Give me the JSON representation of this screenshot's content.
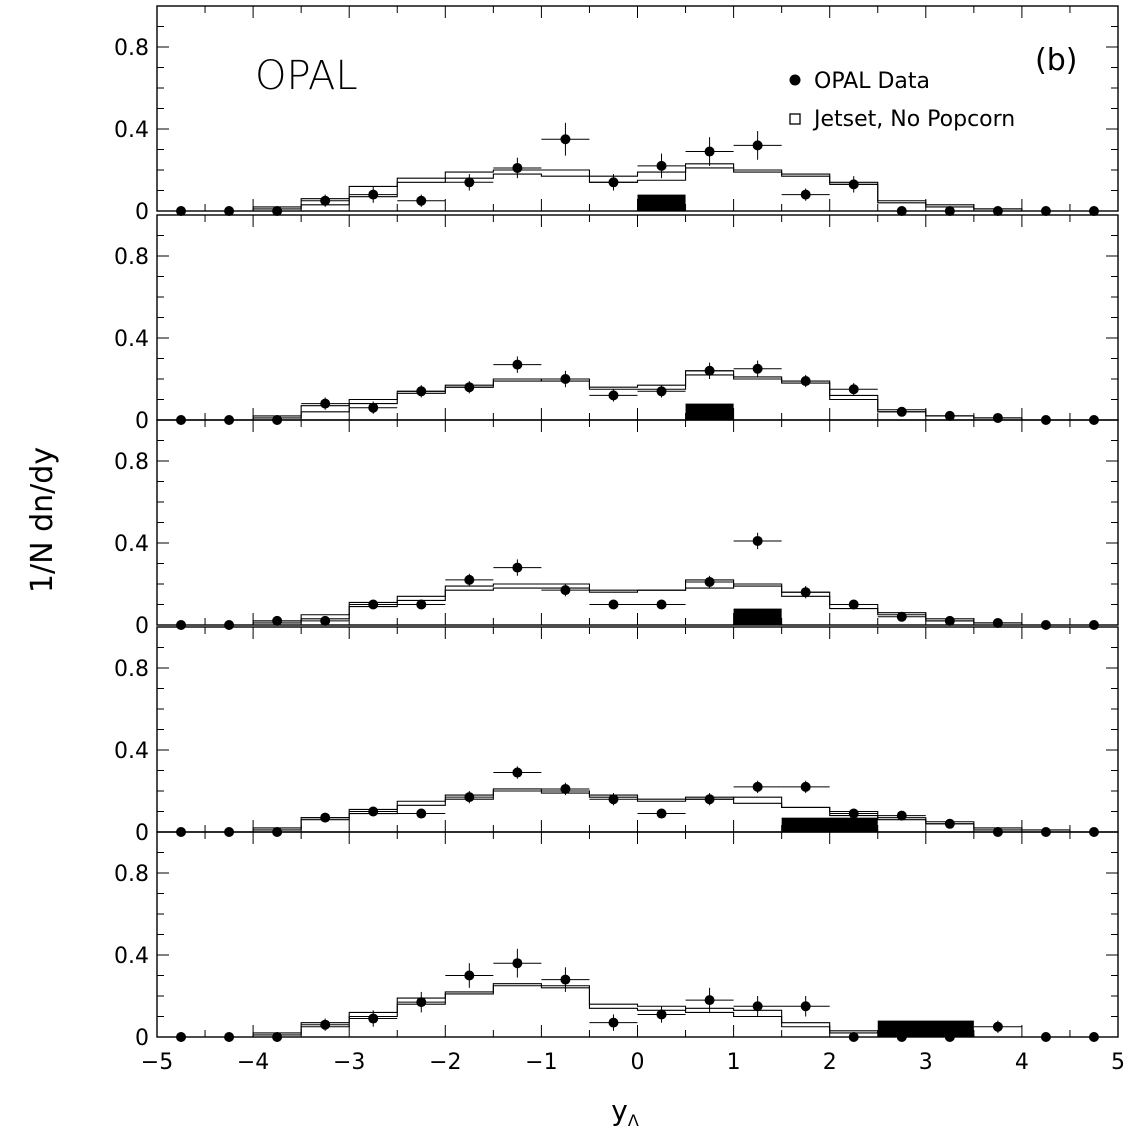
{
  "chart_data": {
    "type": "scatter",
    "experiment_label": "OPAL",
    "panel_tag": "(b)",
    "ylabel": "1/N dn/dy",
    "xlabel": "y",
    "xlabel_sub": "Λ",
    "xlim": [
      -5,
      5
    ],
    "ylim": [
      0,
      1.0
    ],
    "x_ticks": [
      -5,
      -4,
      -3,
      -2,
      -1,
      0,
      1,
      2,
      3,
      4,
      5
    ],
    "x_tick_labels": [
      "−5",
      "−4",
      "−3",
      "−2",
      "−1",
      "0",
      "1",
      "2",
      "3",
      "4",
      "5"
    ],
    "y_ticks": [
      0,
      0.4,
      0.8
    ],
    "y_tick_labels": [
      "0",
      "0.4",
      "0.8"
    ],
    "legend": {
      "position": "top-right",
      "entries": [
        {
          "marker": "filled-circle",
          "label": "OPAL Data"
        },
        {
          "marker": "open-square",
          "label": "Jetset, No Popcorn"
        }
      ]
    },
    "bin_edges": [
      -5,
      -4.5,
      -4,
      -3.5,
      -3,
      -2.5,
      -2,
      -1.5,
      -1,
      -0.5,
      0,
      0.5,
      1,
      1.5,
      2,
      2.5,
      3,
      3.5,
      4,
      4.5,
      5
    ],
    "x": [
      -4.75,
      -4.25,
      -3.75,
      -3.25,
      -2.75,
      -2.25,
      -1.75,
      -1.25,
      -0.75,
      -0.25,
      0.25,
      0.75,
      1.25,
      1.75,
      2.25,
      2.75,
      3.25,
      3.75,
      4.25,
      4.75
    ],
    "panels": [
      {
        "data": [
          0.0,
          0.0,
          0.0,
          0.05,
          0.08,
          0.05,
          0.14,
          0.21,
          0.35,
          0.14,
          0.22,
          0.29,
          0.32,
          0.08,
          0.13,
          0.0,
          0.0,
          0.0,
          0.0,
          0.0
        ],
        "errors": [
          0.0,
          0.0,
          0.0,
          0.03,
          0.04,
          0.03,
          0.04,
          0.05,
          0.08,
          0.04,
          0.06,
          0.07,
          0.07,
          0.03,
          0.04,
          0.0,
          0.0,
          0.0,
          0.0,
          0.0
        ],
        "model": [
          0.0,
          0.0,
          0.01,
          0.06,
          0.12,
          0.16,
          0.19,
          0.2,
          0.2,
          0.17,
          0.19,
          0.21,
          0.2,
          0.18,
          0.13,
          0.04,
          0.02,
          0.01,
          0.0,
          0.0
        ],
        "model_alt": [
          0.0,
          0.0,
          0.02,
          0.03,
          0.07,
          0.14,
          0.16,
          0.18,
          0.17,
          0.14,
          0.15,
          0.23,
          0.19,
          0.17,
          0.14,
          0.05,
          0.03,
          0.01,
          0.0,
          0.0
        ],
        "box": {
          "x0": 0.0,
          "x1": 0.5,
          "height": 0.08
        }
      },
      {
        "data": [
          0.0,
          0.0,
          0.0,
          0.08,
          0.06,
          0.14,
          0.16,
          0.27,
          0.2,
          0.12,
          0.14,
          0.24,
          0.25,
          0.19,
          0.15,
          0.04,
          0.02,
          0.01,
          0.0,
          0.0
        ],
        "errors": [
          0.0,
          0.0,
          0.0,
          0.03,
          0.03,
          0.03,
          0.03,
          0.04,
          0.04,
          0.03,
          0.03,
          0.04,
          0.04,
          0.03,
          0.03,
          0.01,
          0.01,
          0.0,
          0.0,
          0.0
        ],
        "model": [
          0.0,
          0.0,
          0.01,
          0.07,
          0.1,
          0.14,
          0.16,
          0.19,
          0.2,
          0.16,
          0.17,
          0.22,
          0.2,
          0.18,
          0.12,
          0.05,
          0.02,
          0.01,
          0.0,
          0.0
        ],
        "model_alt": [
          0.0,
          0.0,
          0.02,
          0.04,
          0.08,
          0.13,
          0.17,
          0.2,
          0.19,
          0.15,
          0.15,
          0.24,
          0.21,
          0.19,
          0.1,
          0.04,
          0.02,
          0.01,
          0.0,
          0.0
        ],
        "box": {
          "x0": 0.5,
          "x1": 1.0,
          "height": 0.08
        }
      },
      {
        "data": [
          0.0,
          0.0,
          0.02,
          0.02,
          0.1,
          0.1,
          0.22,
          0.28,
          0.17,
          0.1,
          0.1,
          0.21,
          0.41,
          0.16,
          0.1,
          0.04,
          0.02,
          0.01,
          0.0,
          0.0
        ],
        "errors": [
          0.0,
          0.0,
          0.01,
          0.01,
          0.02,
          0.02,
          0.03,
          0.04,
          0.03,
          0.02,
          0.02,
          0.03,
          0.04,
          0.03,
          0.02,
          0.01,
          0.01,
          0.0,
          0.0,
          0.0
        ],
        "model": [
          0.0,
          0.0,
          0.01,
          0.05,
          0.11,
          0.14,
          0.19,
          0.2,
          0.2,
          0.17,
          0.17,
          0.22,
          0.19,
          0.16,
          0.1,
          0.06,
          0.03,
          0.01,
          0.0,
          0.0
        ],
        "model_alt": [
          0.0,
          0.0,
          0.02,
          0.03,
          0.09,
          0.12,
          0.17,
          0.18,
          0.18,
          0.16,
          0.17,
          0.18,
          0.2,
          0.14,
          0.08,
          0.05,
          0.02,
          0.01,
          0.0,
          0.0
        ],
        "box": {
          "x0": 1.0,
          "x1": 1.5,
          "height": 0.08
        }
      },
      {
        "data": [
          0.0,
          0.0,
          0.0,
          0.07,
          0.1,
          0.09,
          0.17,
          0.29,
          0.21,
          0.16,
          0.09,
          0.16,
          0.22,
          0.22,
          0.09,
          0.08,
          0.04,
          0.0,
          0.0,
          0.0
        ],
        "errors": [
          0.0,
          0.0,
          0.0,
          0.02,
          0.02,
          0.02,
          0.03,
          0.03,
          0.03,
          0.03,
          0.02,
          0.03,
          0.03,
          0.03,
          0.02,
          0.02,
          0.01,
          0.0,
          0.0,
          0.0
        ],
        "model": [
          0.0,
          0.0,
          0.01,
          0.07,
          0.09,
          0.15,
          0.18,
          0.21,
          0.2,
          0.17,
          0.16,
          0.16,
          0.17,
          0.12,
          0.1,
          0.07,
          0.05,
          0.02,
          0.01,
          0.0
        ],
        "model_alt": [
          0.0,
          0.0,
          0.02,
          0.06,
          0.11,
          0.13,
          0.16,
          0.2,
          0.19,
          0.18,
          0.15,
          0.17,
          0.14,
          0.12,
          0.08,
          0.06,
          0.04,
          0.01,
          0.0,
          0.0
        ],
        "box": {
          "x0": 1.5,
          "x1": 2.5,
          "height": 0.07
        }
      },
      {
        "data": [
          0.0,
          0.0,
          0.0,
          0.06,
          0.09,
          0.17,
          0.3,
          0.36,
          0.28,
          0.07,
          0.11,
          0.18,
          0.15,
          0.15,
          0.0,
          0.0,
          0.0,
          0.05,
          0.0,
          0.0
        ],
        "errors": [
          0.0,
          0.0,
          0.0,
          0.03,
          0.04,
          0.05,
          0.06,
          0.07,
          0.06,
          0.04,
          0.04,
          0.06,
          0.05,
          0.05,
          0.0,
          0.0,
          0.0,
          0.03,
          0.0,
          0.0
        ],
        "model": [
          0.0,
          0.0,
          0.02,
          0.07,
          0.12,
          0.19,
          0.22,
          0.25,
          0.24,
          0.16,
          0.15,
          0.12,
          0.1,
          0.05,
          0.02,
          0.02,
          0.01,
          0.0,
          0.0,
          0.0
        ],
        "model_alt": [
          0.0,
          0.0,
          0.01,
          0.05,
          0.1,
          0.16,
          0.21,
          0.26,
          0.25,
          0.14,
          0.13,
          0.14,
          0.13,
          0.07,
          0.03,
          0.02,
          0.01,
          0.0,
          0.0,
          0.0
        ],
        "box": {
          "x0": 2.5,
          "x1": 3.5,
          "height": 0.08
        }
      }
    ]
  }
}
